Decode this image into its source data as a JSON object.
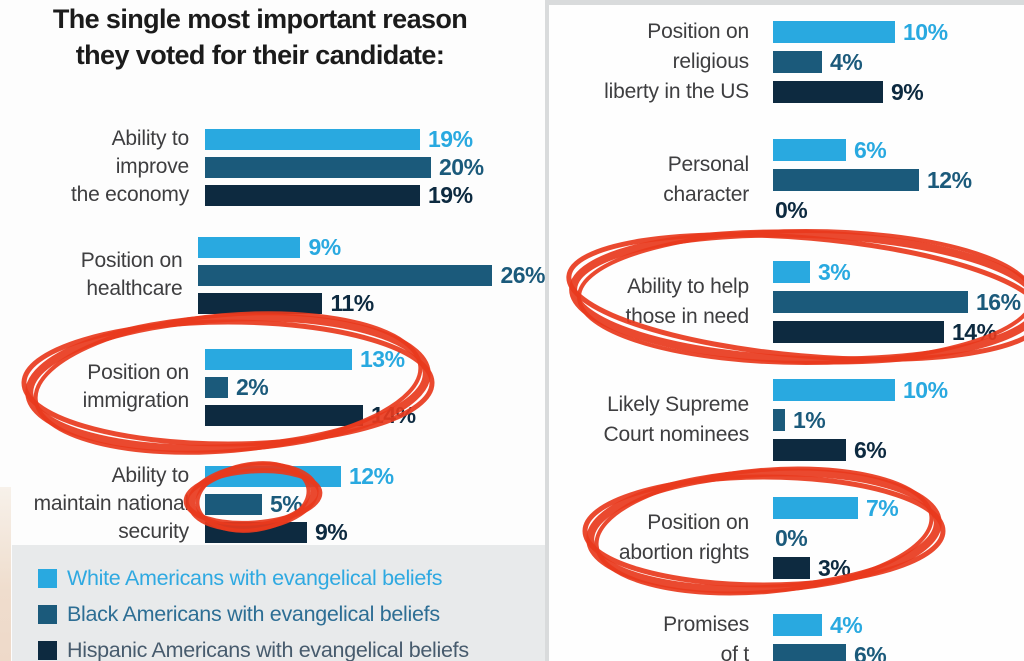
{
  "title": {
    "line1": "The single most important reason",
    "line2": "they voted for their candidate:"
  },
  "colors": {
    "series": [
      "#29a9e0",
      "#1b5a7b",
      "#0d2a40"
    ],
    "legend_text": [
      "#2fa9e1",
      "#2d6e94",
      "#475b6d"
    ],
    "annotation_red": "#e8391d",
    "legend_background": "#e8eaeb",
    "panel_border": "#d9dbdc"
  },
  "legend": {
    "items": [
      {
        "label": "White Americans with evangelical beliefs"
      },
      {
        "label": "Black Americans with evangelical beliefs"
      },
      {
        "label": "Hispanic Americans with evangelical beliefs"
      }
    ]
  },
  "chart_data": {
    "type": "bar",
    "orientation": "horizontal",
    "unit": "%",
    "title": "The single most important reason they voted for their candidate:",
    "legend_position": "bottom-left",
    "series": [
      "White Americans with evangelical beliefs",
      "Black Americans with evangelical beliefs",
      "Hispanic Americans with evangelical beliefs"
    ],
    "panels": [
      {
        "groups": [
          {
            "label": "Ability to improve the economy",
            "label_lines": [
              "Ability to",
              "improve",
              "the economy"
            ],
            "values": [
              19,
              20,
              19
            ]
          },
          {
            "label": "Position on healthcare",
            "label_lines": [
              "Position on",
              "healthcare"
            ],
            "values": [
              9,
              26,
              11
            ]
          },
          {
            "label": "Position on immigration",
            "label_lines": [
              "Position on",
              "immigration"
            ],
            "values": [
              13,
              2,
              14
            ],
            "circled": true
          },
          {
            "label": "Ability to maintain national security",
            "label_lines": [
              "Ability to",
              "maintain national",
              "security"
            ],
            "values": [
              12,
              5,
              9
            ],
            "circled_value": "Black Americans 5%"
          }
        ]
      },
      {
        "groups": [
          {
            "label": "Position on religious liberty in the US",
            "label_lines": [
              "Position on",
              "religious",
              "liberty in the US"
            ],
            "values": [
              10,
              4,
              9
            ]
          },
          {
            "label": "Personal character",
            "label_lines": [
              "Personal",
              "character"
            ],
            "values": [
              6,
              12,
              0
            ]
          },
          {
            "label": "Ability to help those in need",
            "label_lines": [
              "Ability to help",
              "those in need"
            ],
            "values": [
              3,
              16,
              14
            ],
            "circled": true
          },
          {
            "label": "Likely Supreme Court nominees",
            "label_lines": [
              "Likely Supreme",
              "Court nominees"
            ],
            "values": [
              10,
              1,
              6
            ]
          },
          {
            "label": "Position on abortion rights",
            "label_lines": [
              "Position on",
              "abortion rights"
            ],
            "values": [
              7,
              0,
              3
            ],
            "circled": true
          },
          {
            "label": "Promises of t…(cut off)",
            "label_lines": [
              "Promises",
              "of t"
            ],
            "values": [
              4,
              6,
              null
            ],
            "cut_off": true
          }
        ]
      }
    ]
  },
  "annotations": {
    "circled_items": [
      "Position on immigration (all three bars)",
      "5% Black Americans bar on ability to maintain national security",
      "Ability to help those in need (all three bars)",
      "Position on abortion rights (all three bars)"
    ]
  }
}
